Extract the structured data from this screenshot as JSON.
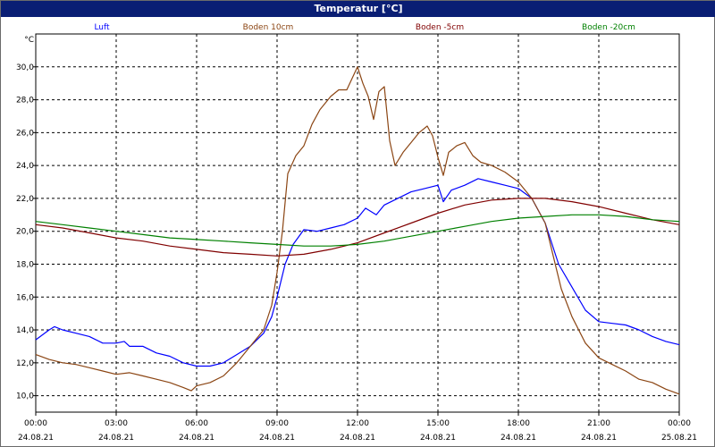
{
  "window": {
    "title": "Temperatur [°C]"
  },
  "chart_data": {
    "type": "line",
    "title": "Temperatur [°C]",
    "ylabel": "°C",
    "ylim": [
      9.0,
      32.0
    ],
    "yticks": [
      "10,0",
      "12,0",
      "14,0",
      "16,0",
      "18,0",
      "20,0",
      "22,0",
      "24,0",
      "26,0",
      "28,0",
      "30,0"
    ],
    "ytick_values": [
      10,
      12,
      14,
      16,
      18,
      20,
      22,
      24,
      26,
      28,
      30
    ],
    "xlim": [
      0,
      24
    ],
    "xticks": [
      {
        "x": 0,
        "time": "00:00",
        "date": "24.08.21"
      },
      {
        "x": 3,
        "time": "03:00",
        "date": "24.08.21"
      },
      {
        "x": 6,
        "time": "06:00",
        "date": "24.08.21"
      },
      {
        "x": 9,
        "time": "09:00",
        "date": "24.08.21"
      },
      {
        "x": 12,
        "time": "12:00",
        "date": "24.08.21"
      },
      {
        "x": 15,
        "time": "15:00",
        "date": "24.08.21"
      },
      {
        "x": 18,
        "time": "18:00",
        "date": "24.08.21"
      },
      {
        "x": 21,
        "time": "21:00",
        "date": "24.08.21"
      },
      {
        "x": 24,
        "time": "00:00",
        "date": "25.08.21"
      }
    ],
    "grid": true,
    "legend_position": "top",
    "series": [
      {
        "name": "Luft",
        "color": "#0000ff",
        "points": [
          [
            0,
            13.4
          ],
          [
            0.5,
            14.0
          ],
          [
            0.7,
            14.2
          ],
          [
            1,
            14.0
          ],
          [
            1.5,
            13.8
          ],
          [
            2,
            13.6
          ],
          [
            2.5,
            13.2
          ],
          [
            3,
            13.2
          ],
          [
            3.3,
            13.3
          ],
          [
            3.5,
            13.0
          ],
          [
            4,
            13.0
          ],
          [
            4.5,
            12.6
          ],
          [
            5,
            12.4
          ],
          [
            5.5,
            12.0
          ],
          [
            6,
            11.8
          ],
          [
            6.5,
            11.8
          ],
          [
            7,
            12.0
          ],
          [
            7.5,
            12.5
          ],
          [
            8,
            13.0
          ],
          [
            8.5,
            13.8
          ],
          [
            8.8,
            14.8
          ],
          [
            9,
            16.0
          ],
          [
            9.3,
            18.0
          ],
          [
            9.6,
            19.2
          ],
          [
            10,
            20.1
          ],
          [
            10.5,
            20.0
          ],
          [
            11,
            20.2
          ],
          [
            11.5,
            20.4
          ],
          [
            12,
            20.8
          ],
          [
            12.3,
            21.4
          ],
          [
            12.7,
            21.0
          ],
          [
            13,
            21.6
          ],
          [
            13.5,
            22.0
          ],
          [
            14,
            22.4
          ],
          [
            14.5,
            22.6
          ],
          [
            15,
            22.8
          ],
          [
            15.2,
            21.8
          ],
          [
            15.5,
            22.5
          ],
          [
            16,
            22.8
          ],
          [
            16.5,
            23.2
          ],
          [
            17,
            23.0
          ],
          [
            17.5,
            22.8
          ],
          [
            18,
            22.6
          ],
          [
            18.5,
            22.0
          ],
          [
            19,
            20.5
          ],
          [
            19.5,
            18.0
          ],
          [
            20,
            16.6
          ],
          [
            20.5,
            15.2
          ],
          [
            21,
            14.5
          ],
          [
            21.5,
            14.4
          ],
          [
            22,
            14.3
          ],
          [
            22.5,
            14.0
          ],
          [
            23,
            13.6
          ],
          [
            23.5,
            13.3
          ],
          [
            24,
            13.1
          ]
        ]
      },
      {
        "name": "Boden 10cm",
        "color": "#8b4513",
        "points": [
          [
            0,
            12.5
          ],
          [
            0.5,
            12.2
          ],
          [
            1,
            12.0
          ],
          [
            1.5,
            11.9
          ],
          [
            2,
            11.7
          ],
          [
            2.5,
            11.5
          ],
          [
            3,
            11.3
          ],
          [
            3.5,
            11.4
          ],
          [
            4,
            11.2
          ],
          [
            4.5,
            11.0
          ],
          [
            5,
            10.8
          ],
          [
            5.5,
            10.5
          ],
          [
            5.8,
            10.3
          ],
          [
            6,
            10.6
          ],
          [
            6.5,
            10.8
          ],
          [
            7,
            11.2
          ],
          [
            7.5,
            12.0
          ],
          [
            8,
            13.0
          ],
          [
            8.5,
            14.0
          ],
          [
            8.8,
            15.5
          ],
          [
            9,
            17.5
          ],
          [
            9.2,
            20.0
          ],
          [
            9.4,
            23.5
          ],
          [
            9.7,
            24.6
          ],
          [
            10,
            25.2
          ],
          [
            10.3,
            26.5
          ],
          [
            10.6,
            27.4
          ],
          [
            11,
            28.2
          ],
          [
            11.3,
            28.6
          ],
          [
            11.6,
            28.6
          ],
          [
            12,
            30.0
          ],
          [
            12.2,
            29.0
          ],
          [
            12.4,
            28.2
          ],
          [
            12.6,
            26.8
          ],
          [
            12.8,
            28.5
          ],
          [
            13,
            28.8
          ],
          [
            13.2,
            25.5
          ],
          [
            13.4,
            24.0
          ],
          [
            13.7,
            24.8
          ],
          [
            14,
            25.4
          ],
          [
            14.3,
            26.0
          ],
          [
            14.6,
            26.4
          ],
          [
            14.8,
            25.8
          ],
          [
            15,
            24.5
          ],
          [
            15.2,
            23.4
          ],
          [
            15.4,
            24.8
          ],
          [
            15.7,
            25.2
          ],
          [
            16,
            25.4
          ],
          [
            16.3,
            24.6
          ],
          [
            16.6,
            24.2
          ],
          [
            17,
            24.0
          ],
          [
            17.5,
            23.6
          ],
          [
            18,
            23.0
          ],
          [
            18.5,
            22.0
          ],
          [
            19,
            20.5
          ],
          [
            19.3,
            18.5
          ],
          [
            19.6,
            16.5
          ],
          [
            20,
            14.8
          ],
          [
            20.5,
            13.2
          ],
          [
            21,
            12.3
          ],
          [
            21.5,
            11.9
          ],
          [
            22,
            11.5
          ],
          [
            22.5,
            11.0
          ],
          [
            23,
            10.8
          ],
          [
            23.5,
            10.4
          ],
          [
            24,
            10.1
          ]
        ]
      },
      {
        "name": "Boden -5cm",
        "color": "#800000",
        "points": [
          [
            0,
            20.4
          ],
          [
            1,
            20.2
          ],
          [
            2,
            19.9
          ],
          [
            3,
            19.6
          ],
          [
            4,
            19.4
          ],
          [
            5,
            19.1
          ],
          [
            6,
            18.9
          ],
          [
            7,
            18.7
          ],
          [
            8,
            18.6
          ],
          [
            9,
            18.5
          ],
          [
            10,
            18.6
          ],
          [
            11,
            18.9
          ],
          [
            12,
            19.3
          ],
          [
            13,
            19.9
          ],
          [
            14,
            20.5
          ],
          [
            15,
            21.1
          ],
          [
            16,
            21.6
          ],
          [
            17,
            21.9
          ],
          [
            18,
            22.0
          ],
          [
            19,
            22.0
          ],
          [
            20,
            21.8
          ],
          [
            21,
            21.5
          ],
          [
            22,
            21.1
          ],
          [
            23,
            20.7
          ],
          [
            24,
            20.4
          ]
        ]
      },
      {
        "name": "Boden -20cm",
        "color": "#008000",
        "points": [
          [
            0,
            20.6
          ],
          [
            1,
            20.4
          ],
          [
            2,
            20.2
          ],
          [
            3,
            20.0
          ],
          [
            4,
            19.8
          ],
          [
            5,
            19.6
          ],
          [
            6,
            19.5
          ],
          [
            7,
            19.4
          ],
          [
            8,
            19.3
          ],
          [
            9,
            19.2
          ],
          [
            10,
            19.1
          ],
          [
            11,
            19.1
          ],
          [
            12,
            19.2
          ],
          [
            13,
            19.4
          ],
          [
            14,
            19.7
          ],
          [
            15,
            20.0
          ],
          [
            16,
            20.3
          ],
          [
            17,
            20.6
          ],
          [
            18,
            20.8
          ],
          [
            19,
            20.9
          ],
          [
            20,
            21.0
          ],
          [
            21,
            21.0
          ],
          [
            22,
            20.9
          ],
          [
            23,
            20.7
          ],
          [
            24,
            20.6
          ]
        ]
      }
    ]
  }
}
